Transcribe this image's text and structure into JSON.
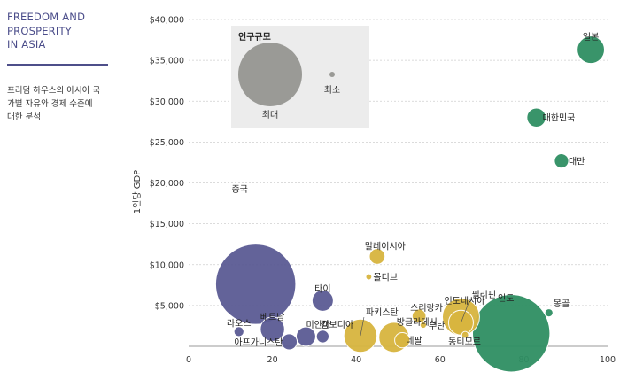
{
  "sidebar": {
    "title": "FREEDOM AND\nPROSPERITY\nIN ASIA",
    "description": "프리덤 하우스의 아시아 국\n가별 자유와 경제 수준에\n대한 분석"
  },
  "colors": {
    "blue": "#5b5b94",
    "yellow": "#d8b53f",
    "green": "#2f8f63",
    "gray": "#9a9a96",
    "accent_rule": "#4e4f8a"
  },
  "chart_data": {
    "type": "scatter",
    "xlim": [
      0,
      100
    ],
    "ylim": [
      0,
      40000
    ],
    "x_ticks": [
      "0",
      "20",
      "40",
      "60",
      "80",
      "100"
    ],
    "y_ticks": [
      "$5,000",
      "$10,000",
      "$15,000",
      "$20,000",
      "$25,000",
      "$30,000",
      "$35,000",
      "$40,000"
    ],
    "y_tick_values": [
      5000,
      10000,
      15000,
      20000,
      25000,
      30000,
      35000,
      40000
    ],
    "x_tick_values": [
      0,
      20,
      40,
      60,
      80,
      100
    ],
    "xlabel": "",
    "ylabel": "1인당 GDP",
    "grid": "horizontal",
    "legend": {
      "title": "인구규모",
      "max_label": "최대",
      "min_label": "최소",
      "position": "top-left"
    },
    "points": [
      {
        "label": "중국",
        "x": 16,
        "y": 7600,
        "size": 1400,
        "color": "blue"
      },
      {
        "label": "라오스",
        "x": 12,
        "y": 1800,
        "size": 7,
        "color": "blue"
      },
      {
        "label": "베트남",
        "x": 20,
        "y": 2100,
        "size": 95,
        "color": "blue"
      },
      {
        "label": "아프가니스탄",
        "x": 24,
        "y": 550,
        "size": 32,
        "color": "blue"
      },
      {
        "label": "미얀마",
        "x": 28,
        "y": 1200,
        "size": 54,
        "color": "blue"
      },
      {
        "label": "캄보디아",
        "x": 32,
        "y": 1200,
        "size": 16,
        "color": "blue"
      },
      {
        "label": "타이",
        "x": 32,
        "y": 5600,
        "size": 68,
        "color": "blue"
      },
      {
        "label": "파키스탄",
        "x": 41,
        "y": 1300,
        "size": 200,
        "color": "yellow"
      },
      {
        "label": "말레이시아",
        "x": 45,
        "y": 11000,
        "size": 30,
        "color": "yellow"
      },
      {
        "label": "몰디브",
        "x": 43,
        "y": 8500,
        "size": 0.5,
        "color": "yellow"
      },
      {
        "label": "방글라데시",
        "x": 49,
        "y": 1100,
        "size": 160,
        "color": "yellow"
      },
      {
        "label": "네팔",
        "x": 51,
        "y": 750,
        "size": 28,
        "color": "yellow"
      },
      {
        "label": "스리랑카",
        "x": 55,
        "y": 3700,
        "size": 21,
        "color": "yellow"
      },
      {
        "label": "부탄",
        "x": 56,
        "y": 2600,
        "size": 0.8,
        "color": "yellow"
      },
      {
        "label": "인도네시아",
        "x": 65,
        "y": 3600,
        "size": 260,
        "color": "yellow"
      },
      {
        "label": "필리핀",
        "x": 65,
        "y": 2900,
        "size": 100,
        "color": "yellow"
      },
      {
        "label": "동티모르",
        "x": 66,
        "y": 1400,
        "size": 1.3,
        "color": "yellow"
      },
      {
        "label": "인도",
        "x": 77,
        "y": 1600,
        "size": 1300,
        "color": "green"
      },
      {
        "label": "몽골",
        "x": 86,
        "y": 4100,
        "size": 3,
        "color": "green"
      },
      {
        "label": "대한민국",
        "x": 83,
        "y": 28000,
        "size": 51,
        "color": "green"
      },
      {
        "label": "대만",
        "x": 89,
        "y": 22700,
        "size": 23,
        "color": "green"
      },
      {
        "label": "일본",
        "x": 96,
        "y": 36300,
        "size": 127,
        "color": "green"
      }
    ]
  }
}
